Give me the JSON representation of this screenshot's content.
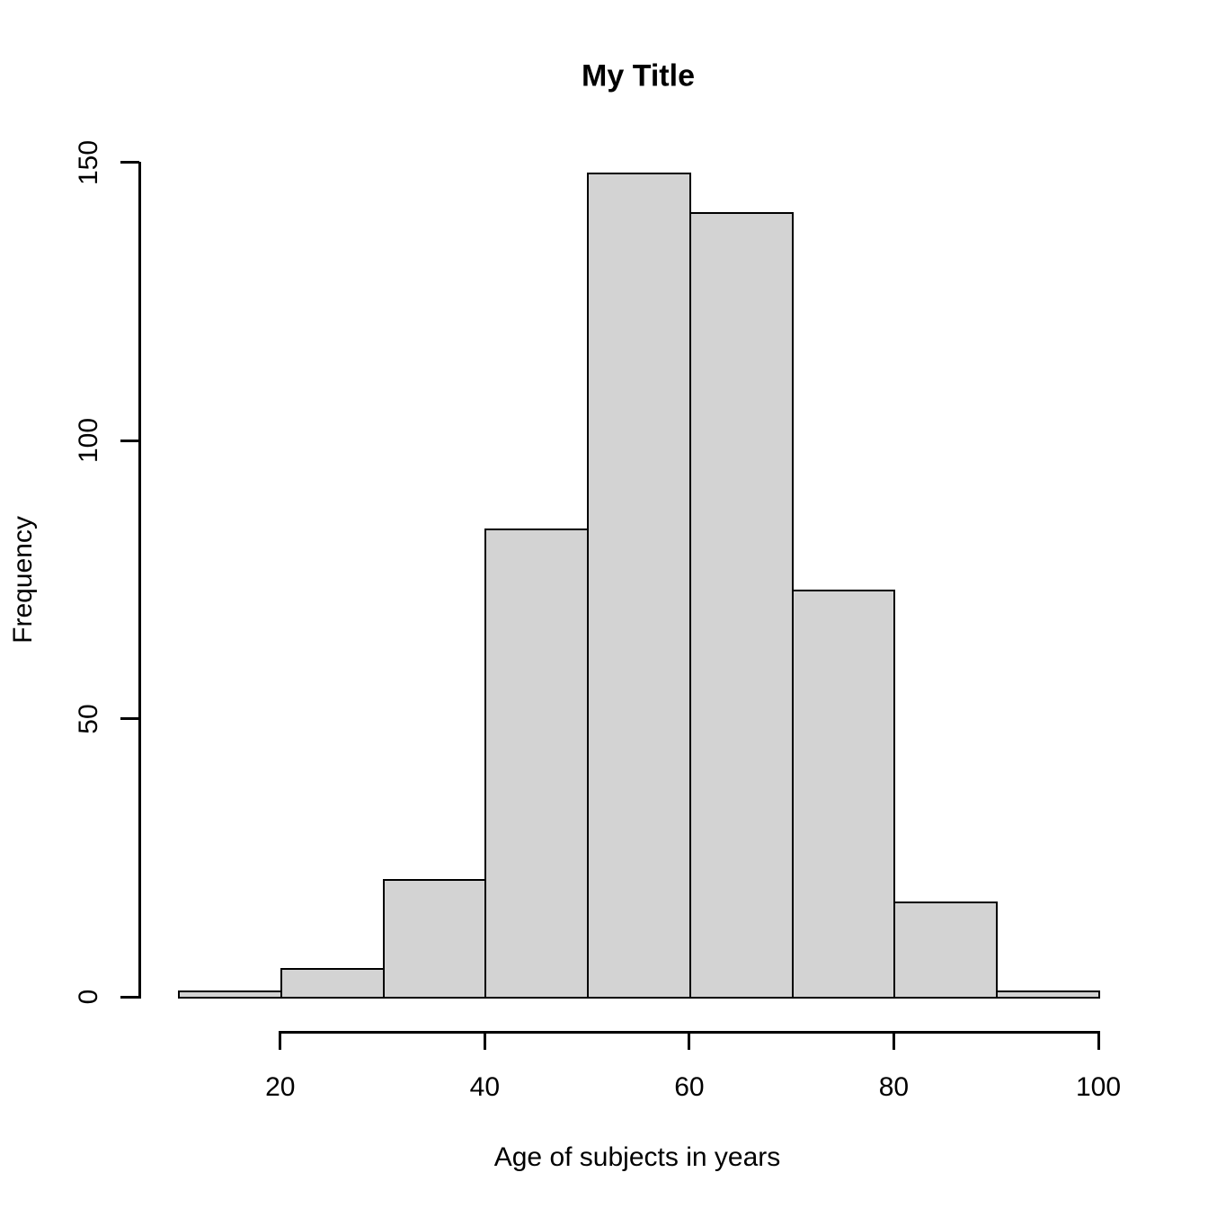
{
  "figure": {
    "background": "#FFFFFF",
    "text_color": "#000000",
    "bar_fill": "#D3D3D3",
    "bar_stroke": "#000000"
  },
  "chart_data": {
    "type": "bar",
    "subtype": "histogram",
    "title": "My Title",
    "xlabel": "Age of subjects in years",
    "ylabel": "Frequency",
    "bin_edges": [
      10,
      20,
      30,
      40,
      50,
      60,
      70,
      80,
      90,
      100
    ],
    "values": [
      1,
      5,
      21,
      84,
      148,
      141,
      73,
      17,
      1
    ],
    "xlim": [
      10,
      100
    ],
    "ylim": [
      0,
      150
    ],
    "x_ticks": [
      20,
      40,
      60,
      80,
      100
    ],
    "y_ticks": [
      0,
      50,
      100,
      150
    ],
    "grid": false,
    "legend": false
  }
}
